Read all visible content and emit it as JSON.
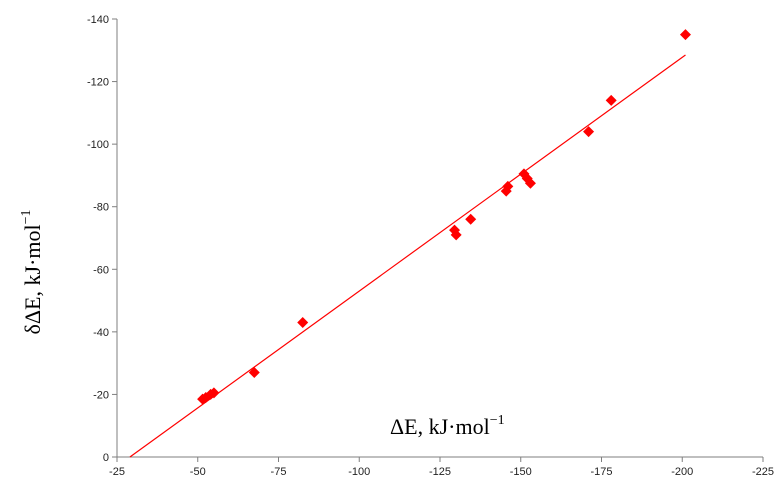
{
  "chart_data": {
    "type": "scatter",
    "title": "",
    "xlabel": "ΔE, kJ·mol",
    "xlabel_sup": "−1",
    "ylabel": "δΔE,  kJ·mol",
    "ylabel_sup": "−1",
    "xlim": [
      -25,
      -225
    ],
    "ylim": [
      0,
      -140
    ],
    "x_ticks": [
      -25,
      -50,
      -75,
      -100,
      -125,
      -150,
      -175,
      -200,
      -225
    ],
    "x_tick_labels": [
      "-25",
      "-50",
      "-75",
      "-100",
      "-125",
      "-150",
      "-175",
      "-200",
      "-225"
    ],
    "y_ticks": [
      0,
      -20,
      -40,
      -60,
      -80,
      -100,
      -120,
      -140
    ],
    "y_tick_labels": [
      "0",
      "-20",
      "-40",
      "-60",
      "-80",
      "-100",
      "-120",
      "-140"
    ],
    "grid": false,
    "legend": "none",
    "series": [
      {
        "marker": "diamond",
        "color": "#ff0000",
        "points": [
          {
            "x": -51.5,
            "y": -18.5
          },
          {
            "x": -52.5,
            "y": -19.0
          },
          {
            "x": -54.0,
            "y": -20.0
          },
          {
            "x": -55.0,
            "y": -20.5
          },
          {
            "x": -67.5,
            "y": -27.0
          },
          {
            "x": -82.5,
            "y": -43.0
          },
          {
            "x": -129.5,
            "y": -72.5
          },
          {
            "x": -130.0,
            "y": -71.0
          },
          {
            "x": -134.5,
            "y": -76.0
          },
          {
            "x": -145.5,
            "y": -85.0
          },
          {
            "x": -146.0,
            "y": -86.5
          },
          {
            "x": -151.0,
            "y": -90.5
          },
          {
            "x": -152.0,
            "y": -89.0
          },
          {
            "x": -153.0,
            "y": -87.5
          },
          {
            "x": -171.0,
            "y": -104.0
          },
          {
            "x": -178.0,
            "y": -114.0
          },
          {
            "x": -201.0,
            "y": -135.0
          }
        ]
      }
    ],
    "trendline": {
      "type": "linear",
      "color": "#ff0000",
      "from": {
        "x": -29.0,
        "y": 0
      },
      "to": {
        "x": -201.0,
        "y": -128.5
      }
    }
  }
}
